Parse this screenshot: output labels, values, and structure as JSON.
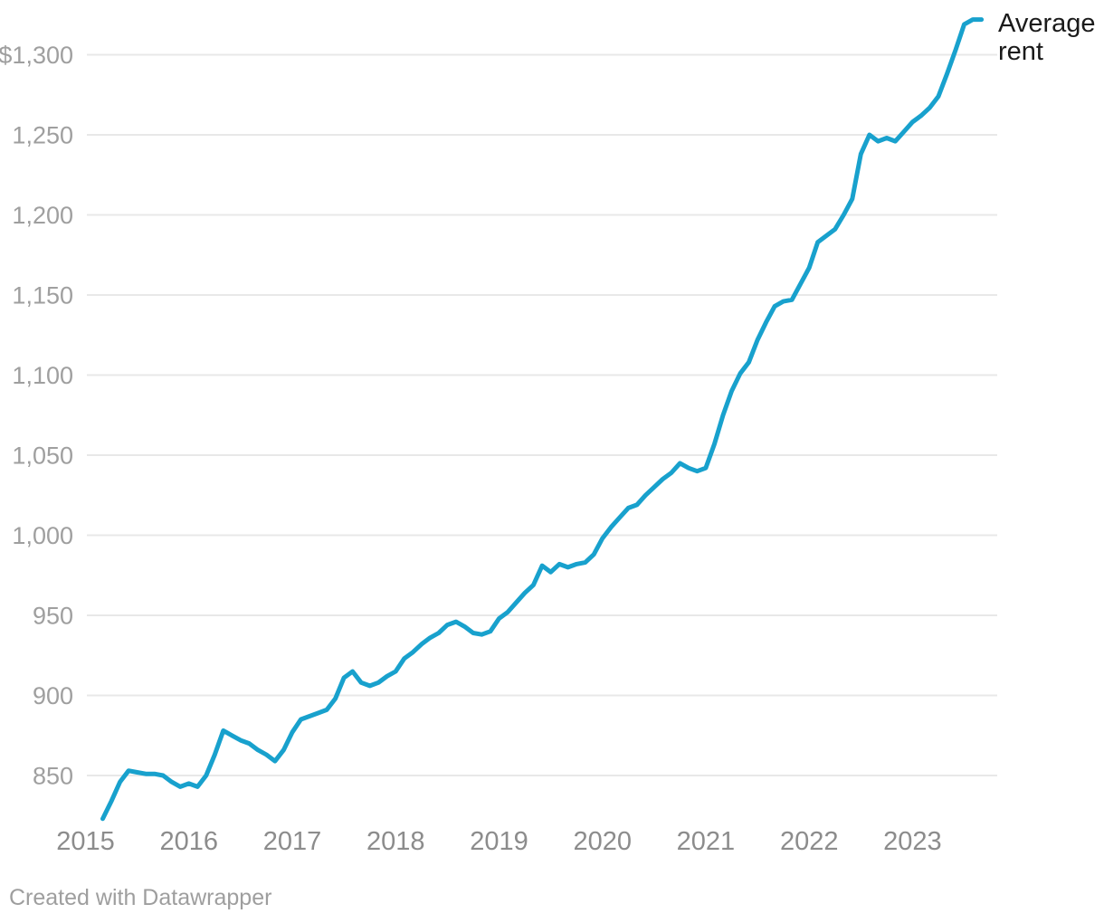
{
  "chart": {
    "series_label": "Average rent",
    "footer_credit": "Created with Datawrapper"
  },
  "chart_data": {
    "type": "line",
    "title": "",
    "series": [
      {
        "name": "Average rent",
        "unit": "USD",
        "frequency": "monthly",
        "x_start": "2015-03",
        "x_end": "2023-09",
        "values": [
          823,
          834,
          846,
          853,
          852,
          851,
          851,
          850,
          846,
          843,
          845,
          843,
          850,
          863,
          878,
          875,
          872,
          870,
          866,
          863,
          859,
          866,
          877,
          885,
          887,
          889,
          891,
          898,
          911,
          915,
          908,
          906,
          908,
          912,
          915,
          923,
          927,
          932,
          936,
          939,
          944,
          946,
          943,
          939,
          938,
          940,
          948,
          952,
          958,
          964,
          969,
          981,
          977,
          982,
          980,
          982,
          983,
          988,
          998,
          1005,
          1011,
          1017,
          1019,
          1025,
          1030,
          1035,
          1039,
          1045,
          1042,
          1040,
          1042,
          1057,
          1075,
          1090,
          1101,
          1108,
          1122,
          1133,
          1143,
          1146,
          1147,
          1157,
          1167,
          1183,
          1187,
          1191,
          1200,
          1210,
          1238,
          1250,
          1246,
          1248,
          1246,
          1252,
          1258,
          1262,
          1267,
          1274,
          1288,
          1303,
          1319,
          1322,
          1322
        ]
      }
    ],
    "y_ticks": [
      {
        "value": 850,
        "label": "850"
      },
      {
        "value": 900,
        "label": "900"
      },
      {
        "value": 950,
        "label": "950"
      },
      {
        "value": 1000,
        "label": "1,000"
      },
      {
        "value": 1050,
        "label": "1,050"
      },
      {
        "value": 1100,
        "label": "1,100"
      },
      {
        "value": 1150,
        "label": "1,150"
      },
      {
        "value": 1200,
        "label": "1,200"
      },
      {
        "value": 1250,
        "label": "1,250"
      },
      {
        "value": 1300,
        "label": "$1,300"
      }
    ],
    "x_ticks": [
      {
        "label": "2015",
        "month_index": 0
      },
      {
        "label": "2016",
        "month_index": 12
      },
      {
        "label": "2017",
        "month_index": 24
      },
      {
        "label": "2018",
        "month_index": 36
      },
      {
        "label": "2019",
        "month_index": 48
      },
      {
        "label": "2020",
        "month_index": 60
      },
      {
        "label": "2021",
        "month_index": 72
      },
      {
        "label": "2022",
        "month_index": 84
      },
      {
        "label": "2023",
        "month_index": 96
      }
    ],
    "ylim": [
      823,
      1322
    ],
    "y_gridline_range": [
      850,
      1300
    ],
    "grid": true,
    "legend_position": "right-of-line-end",
    "colors": {
      "line": "#18a1cd",
      "gridline": "#e8e8e8",
      "y_tick_text": "#9f9f9f",
      "x_tick_text": "#8c8c8c",
      "series_label_text": "#1a1a1a",
      "footer_text": "#9e9e9e"
    }
  }
}
